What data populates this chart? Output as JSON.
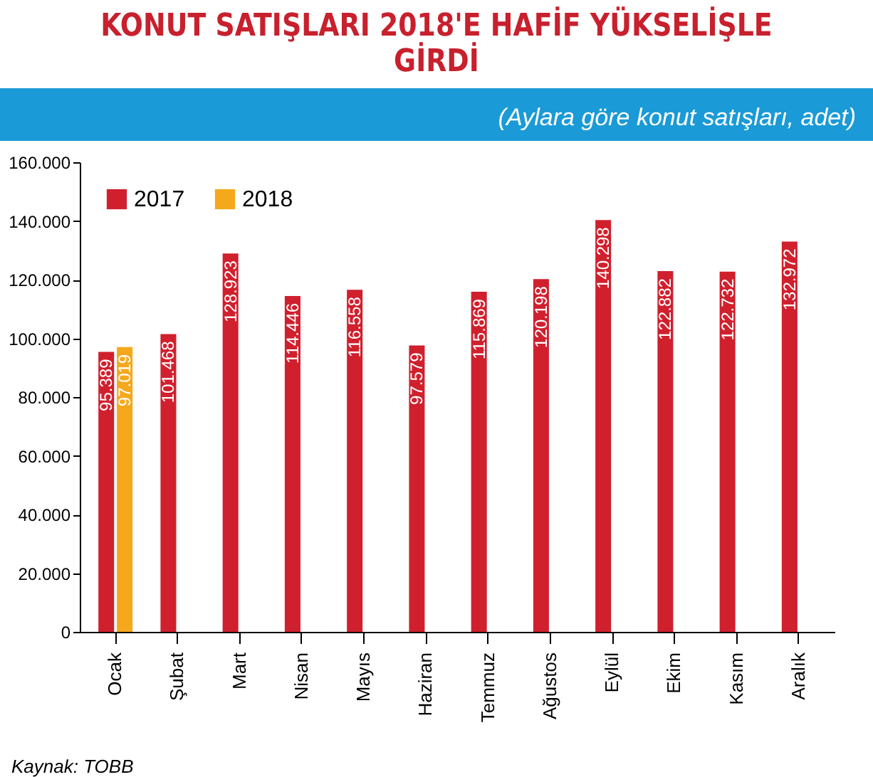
{
  "chart_data": {
    "type": "bar",
    "title": "KONUT SATIŞLARI 2018'E HAFİF YÜKSELİŞLE GİRDİ",
    "subtitle": "(Aylara göre konut satışları, adet)",
    "categories": [
      "Ocak",
      "Şubat",
      "Mart",
      "Nisan",
      "Mayıs",
      "Haziran",
      "Temmuz",
      "Ağustos",
      "Eylül",
      "Ekim",
      "Kasım",
      "Aralık"
    ],
    "series": [
      {
        "name": "2017",
        "color": "#d0202e",
        "values": [
          95389,
          101468,
          128923,
          114446,
          116558,
          97579,
          115869,
          120198,
          140298,
          122882,
          122732,
          132972
        ],
        "value_labels": [
          "95.389",
          "101.468",
          "128.923",
          "114.446",
          "116.558",
          "97.579",
          "115.869",
          "120.198",
          "140.298",
          "122.882",
          "122.732",
          "132.972"
        ]
      },
      {
        "name": "2018",
        "color": "#f6a81c",
        "values": [
          97019,
          null,
          null,
          null,
          null,
          null,
          null,
          null,
          null,
          null,
          null,
          null
        ],
        "value_labels": [
          "97.019",
          null,
          null,
          null,
          null,
          null,
          null,
          null,
          null,
          null,
          null,
          null
        ]
      }
    ],
    "ylim": [
      0,
      160000
    ],
    "yticks": [
      {
        "value": 0,
        "label": "0"
      },
      {
        "value": 20000,
        "label": "20.000"
      },
      {
        "value": 40000,
        "label": "40.000"
      },
      {
        "value": 60000,
        "label": "60.000"
      },
      {
        "value": 80000,
        "label": "80.000"
      },
      {
        "value": 100000,
        "label": "100.000"
      },
      {
        "value": 120000,
        "label": "120.000"
      },
      {
        "value": 140000,
        "label": "140.000"
      },
      {
        "value": 160000,
        "label": "160.000"
      }
    ],
    "grid": false,
    "legend": "top left",
    "annotations": [
      "Kaynak: TOBB"
    ]
  }
}
